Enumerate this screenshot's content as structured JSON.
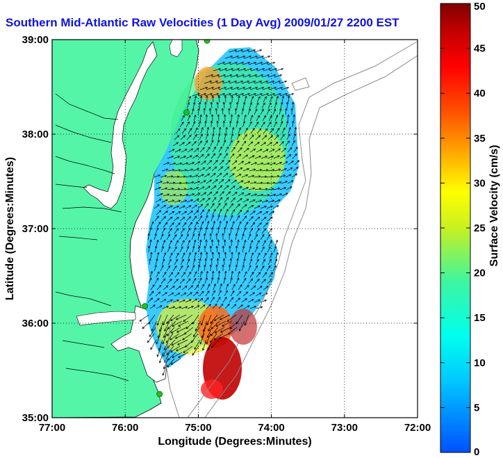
{
  "title": "Southern Mid-Atlantic Raw Velocities (1 Day Avg) 2009/01/27 2200 EST",
  "map": {
    "x_label": "Longitude (Degrees:Minutes)",
    "y_label": "Latitude (Degrees:Minutes)",
    "x_ticks": [
      "77:00",
      "76:00",
      "75:00",
      "74:00",
      "73:00",
      "72:00"
    ],
    "y_ticks": [
      "39:00",
      "38:00",
      "37:00",
      "36:00",
      "35:00"
    ],
    "lon_range": [
      -77,
      -72
    ],
    "lat_range": [
      35,
      39
    ],
    "land_color": "#55f5a8",
    "coast_color": "#000000",
    "isobath_color": "#8a8a8a",
    "station_color": "#22c022",
    "stations": [
      {
        "lon": -74.88,
        "lat": 38.99
      },
      {
        "lon": -75.16,
        "lat": 38.23
      },
      {
        "lon": -75.73,
        "lat": 36.18
      },
      {
        "lon": -75.53,
        "lat": 35.25
      }
    ]
  },
  "colorbar": {
    "label": "Surface Velocity (cm/s)",
    "ticks": [
      "0",
      "5",
      "10",
      "15",
      "20",
      "25",
      "30",
      "35",
      "40",
      "45",
      "50"
    ],
    "min": 0,
    "max": 50
  }
}
